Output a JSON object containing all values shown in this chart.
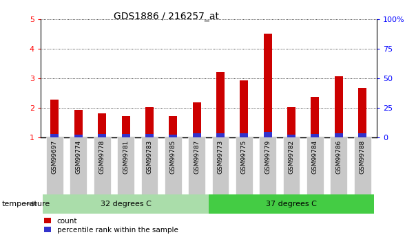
{
  "title": "GDS1886 / 216257_at",
  "samples": [
    "GSM99697",
    "GSM99774",
    "GSM99778",
    "GSM99781",
    "GSM99783",
    "GSM99785",
    "GSM99787",
    "GSM99773",
    "GSM99775",
    "GSM99779",
    "GSM99782",
    "GSM99784",
    "GSM99786",
    "GSM99788"
  ],
  "count_values": [
    2.28,
    1.92,
    1.82,
    1.73,
    2.02,
    1.73,
    2.18,
    3.2,
    2.93,
    4.5,
    2.02,
    2.38,
    3.07,
    2.68
  ],
  "percentile_values": [
    0.12,
    0.1,
    0.12,
    0.12,
    0.12,
    0.1,
    0.14,
    0.14,
    0.13,
    0.18,
    0.1,
    0.12,
    0.13,
    0.13
  ],
  "groups": [
    {
      "label": "32 degrees C",
      "start": 0,
      "end": 7,
      "color": "#aaddaa"
    },
    {
      "label": "37 degrees C",
      "start": 7,
      "end": 14,
      "color": "#44cc44"
    }
  ],
  "group_label": "temperature",
  "ylim_min": 1,
  "ylim_max": 5,
  "yticks": [
    1,
    2,
    3,
    4,
    5
  ],
  "right_yticks": [
    0,
    25,
    50,
    75,
    100
  ],
  "right_ytick_labels": [
    "0",
    "25",
    "50",
    "75",
    "100%"
  ],
  "bar_color_red": "#CC0000",
  "bar_color_blue": "#3333CC",
  "title_fontsize": 10,
  "bar_width": 0.35,
  "tick_label_bg": "#C8C8C8",
  "legend_labels": [
    "count",
    "percentile rank within the sample"
  ]
}
